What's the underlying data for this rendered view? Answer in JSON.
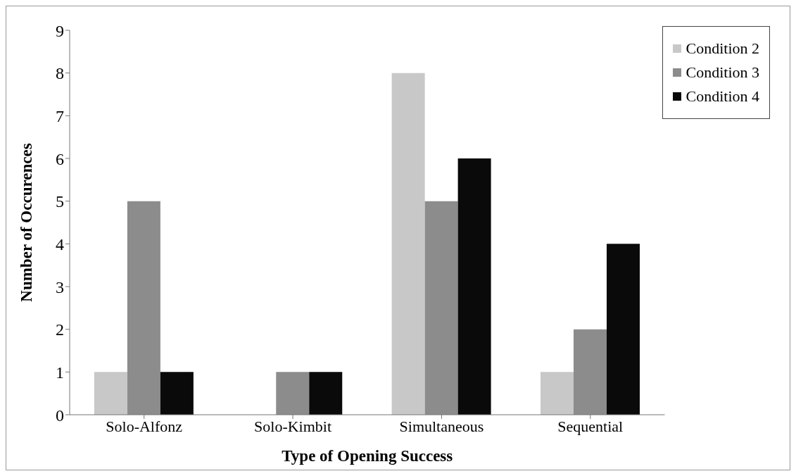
{
  "chart_data": {
    "type": "bar",
    "xlabel": "Type of Opening Success",
    "ylabel": "Number of Occurences",
    "categories": [
      "Solo-Alfonz",
      "Solo-Kimbit",
      "Simultaneous",
      "Sequential"
    ],
    "series": [
      {
        "name": "Condition 2",
        "color": "#c8c8c8",
        "values": [
          1,
          0,
          8,
          1
        ]
      },
      {
        "name": "Condition 3",
        "color": "#8c8c8c",
        "values": [
          5,
          1,
          5,
          2
        ]
      },
      {
        "name": "Condition 4",
        "color": "#0a0a0a",
        "values": [
          1,
          1,
          6,
          4
        ]
      }
    ],
    "ylim": [
      0,
      9
    ],
    "yticks": [
      0,
      1,
      2,
      3,
      4,
      5,
      6,
      7,
      8,
      9
    ],
    "grid": false,
    "legend": "top right"
  }
}
